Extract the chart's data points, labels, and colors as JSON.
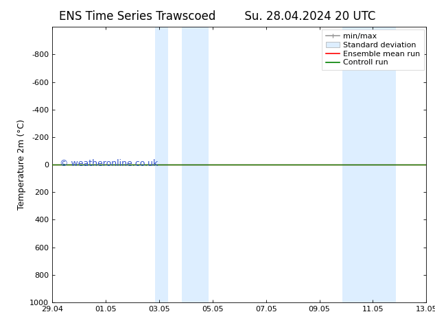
{
  "title_left": "ENS Time Series Trawscoed",
  "title_right": "Su. 28.04.2024 20 UTC",
  "ylabel": "Temperature 2m (°C)",
  "xlabel_ticks": [
    "29.04",
    "01.05",
    "03.05",
    "05.05",
    "07.05",
    "09.05",
    "11.05",
    "13.05"
  ],
  "x_tick_positions": [
    0,
    2,
    4,
    6,
    8,
    10,
    12,
    14
  ],
  "xlim": [
    0,
    14
  ],
  "ylim_bottom": -1000,
  "ylim_top": 1000,
  "yticks": [
    -800,
    -600,
    -400,
    -200,
    0,
    200,
    400,
    600,
    800,
    1000
  ],
  "background_color": "#ffffff",
  "plot_bg_color": "#ffffff",
  "shaded_regions": [
    [
      3.85,
      4.35
    ],
    [
      4.85,
      5.85
    ],
    [
      10.85,
      11.85
    ],
    [
      11.85,
      12.85
    ]
  ],
  "shaded_color": "#ddeeff",
  "line_color_ensemble": "#ff0000",
  "line_color_control": "#008000",
  "watermark": "© weatheronline.co.uk",
  "watermark_color": "#3355cc",
  "legend_entries": [
    "min/max",
    "Standard deviation",
    "Ensemble mean run",
    "Controll run"
  ],
  "font_family": "DejaVu Sans",
  "title_fontsize": 12,
  "tick_fontsize": 8,
  "ylabel_fontsize": 9,
  "watermark_fontsize": 9,
  "legend_fontsize": 8
}
